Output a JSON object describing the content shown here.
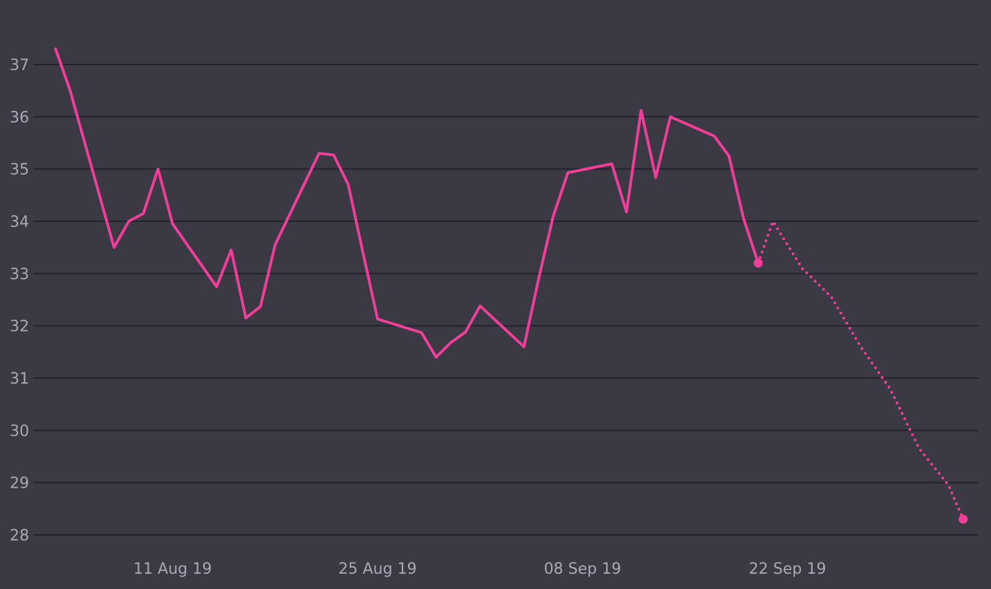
{
  "chart_data": {
    "type": "line",
    "title": "",
    "xlabel": "",
    "ylabel": "",
    "ylim": [
      28,
      37
    ],
    "yticks": [
      37,
      36,
      35,
      34,
      33,
      32,
      31,
      30,
      29,
      28
    ],
    "ytick_labels": [
      "37",
      "36",
      "35",
      "34",
      "33",
      "32",
      "31",
      "30",
      "29",
      "28"
    ],
    "xticks": [
      {
        "date": "2019-08-11",
        "label": "11 Aug 19"
      },
      {
        "date": "2019-08-25",
        "label": "25 Aug 19"
      },
      {
        "date": "2019-09-08",
        "label": "08 Sep 19"
      },
      {
        "date": "2019-09-22",
        "label": "22 Sep 19"
      }
    ],
    "xlim": [
      "2019-08-03",
      "2019-10-05"
    ],
    "grid": "horizontal",
    "legend": "none",
    "color": "#f03e9a",
    "series": [
      {
        "style": "solid",
        "points": [
          {
            "x": "2019-08-03",
            "y": 37.3
          },
          {
            "x": "2019-08-04",
            "y": 36.5
          },
          {
            "x": "2019-08-07",
            "y": 33.5
          },
          {
            "x": "2019-08-08",
            "y": 34.0
          },
          {
            "x": "2019-08-09",
            "y": 34.15
          },
          {
            "x": "2019-08-10",
            "y": 35.0
          },
          {
            "x": "2019-08-11",
            "y": 33.95
          },
          {
            "x": "2019-08-14",
            "y": 32.75
          },
          {
            "x": "2019-08-15",
            "y": 33.45
          },
          {
            "x": "2019-08-16",
            "y": 32.15
          },
          {
            "x": "2019-08-17",
            "y": 32.37
          },
          {
            "x": "2019-08-18",
            "y": 33.55
          },
          {
            "x": "2019-08-21",
            "y": 35.3
          },
          {
            "x": "2019-08-22",
            "y": 35.27
          },
          {
            "x": "2019-08-23",
            "y": 34.7
          },
          {
            "x": "2019-08-24",
            "y": 33.4
          },
          {
            "x": "2019-08-25",
            "y": 32.13
          },
          {
            "x": "2019-08-28",
            "y": 31.87
          },
          {
            "x": "2019-08-29",
            "y": 31.4
          },
          {
            "x": "2019-08-30",
            "y": 31.68
          },
          {
            "x": "2019-08-31",
            "y": 31.88
          },
          {
            "x": "2019-09-01",
            "y": 32.38
          },
          {
            "x": "2019-09-04",
            "y": 31.6
          },
          {
            "x": "2019-09-05",
            "y": 32.9
          },
          {
            "x": "2019-09-06",
            "y": 34.1
          },
          {
            "x": "2019-09-07",
            "y": 34.93
          },
          {
            "x": "2019-09-10",
            "y": 35.1
          },
          {
            "x": "2019-09-11",
            "y": 34.18
          },
          {
            "x": "2019-09-12",
            "y": 36.12
          },
          {
            "x": "2019-09-13",
            "y": 34.84
          },
          {
            "x": "2019-09-14",
            "y": 36.0
          },
          {
            "x": "2019-09-17",
            "y": 35.63
          },
          {
            "x": "2019-09-18",
            "y": 35.25
          },
          {
            "x": "2019-09-19",
            "y": 34.05
          },
          {
            "x": "2019-09-20",
            "y": 33.2
          }
        ]
      },
      {
        "style": "dotted",
        "points": [
          {
            "x": "2019-09-20",
            "y": 33.2
          },
          {
            "x": "2019-09-21",
            "y": 34.0
          },
          {
            "x": "2019-09-22",
            "y": 33.55
          },
          {
            "x": "2019-09-23",
            "y": 33.1
          },
          {
            "x": "2019-09-25",
            "y": 32.55
          },
          {
            "x": "2019-09-27",
            "y": 31.6
          },
          {
            "x": "2019-09-29",
            "y": 30.8
          },
          {
            "x": "2019-10-01",
            "y": 29.65
          },
          {
            "x": "2019-10-03",
            "y": 28.95
          },
          {
            "x": "2019-10-04",
            "y": 28.3
          }
        ]
      }
    ]
  }
}
